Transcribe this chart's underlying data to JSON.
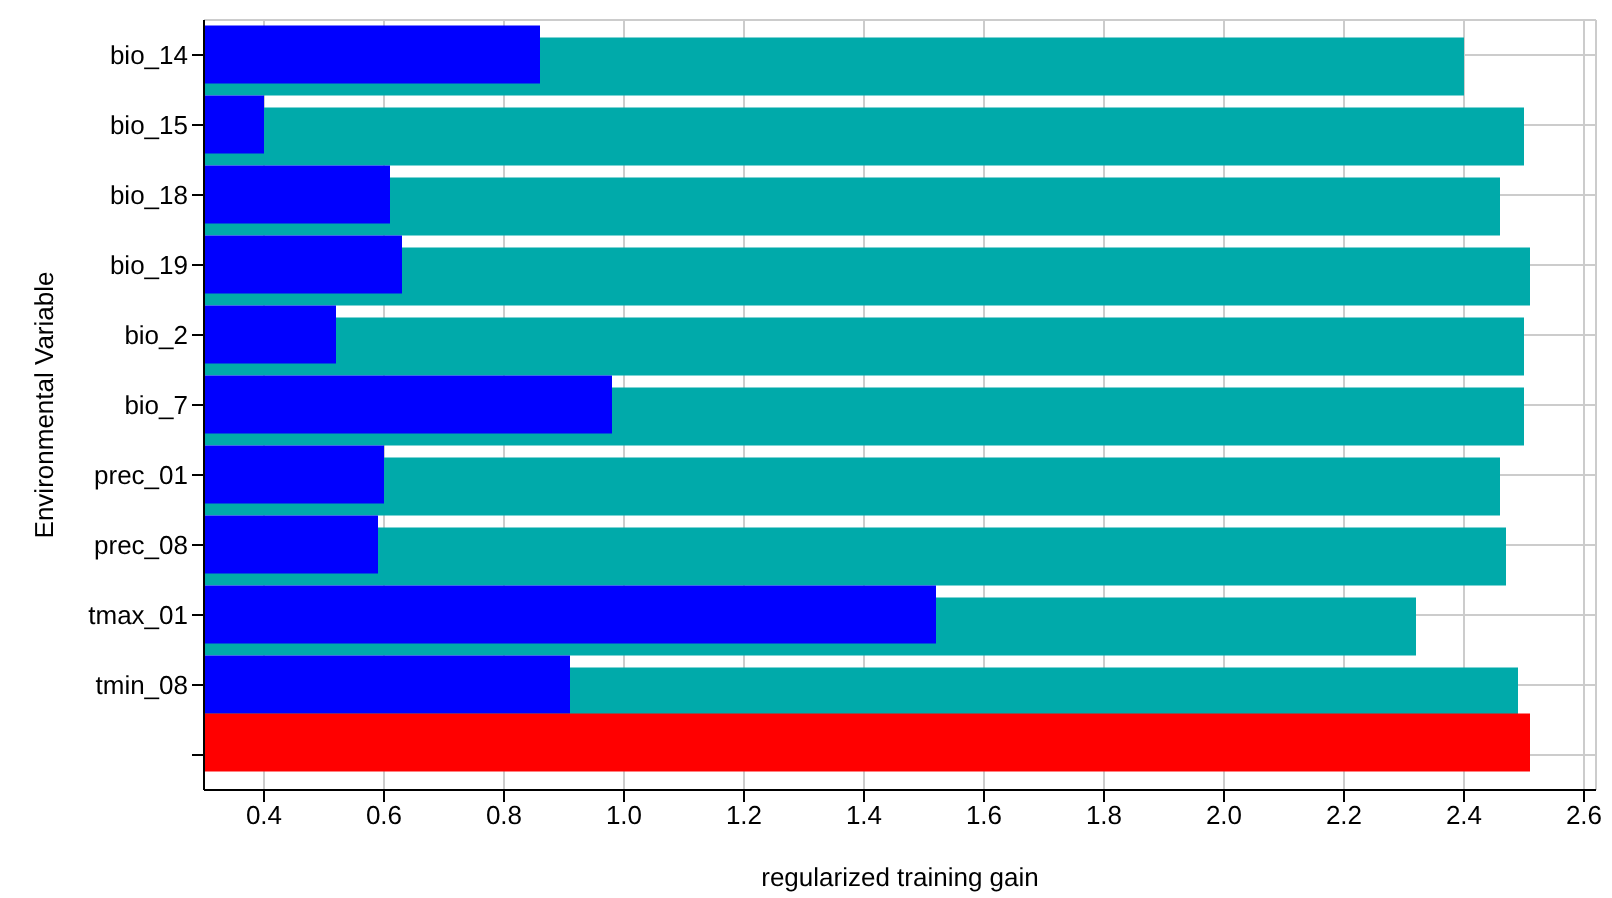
{
  "chart_data": {
    "type": "bar",
    "orientation": "horizontal",
    "ylabel": "Environmental Variable",
    "xlabel": "regularized training gain",
    "categories": [
      "bio_14",
      "bio_15",
      "bio_18",
      "bio_19",
      "bio_2",
      "bio_7",
      "prec_01",
      "prec_08",
      "tmax_01",
      "tmin_08",
      null
    ],
    "series": [
      {
        "color": "#00aaaa",
        "values": [
          2.4,
          2.5,
          2.46,
          2.51,
          2.5,
          2.5,
          2.46,
          2.47,
          2.32,
          2.49,
          null
        ]
      },
      {
        "color": "#0000ff",
        "values": [
          0.86,
          0.4,
          0.61,
          0.63,
          0.52,
          0.98,
          0.6,
          0.59,
          1.52,
          0.91,
          null
        ]
      },
      {
        "color": "#ff0000",
        "values": [
          null,
          null,
          null,
          null,
          null,
          null,
          null,
          null,
          null,
          null,
          2.51
        ]
      }
    ],
    "xlim": [
      0.3,
      2.62
    ],
    "xticks": [
      0.4,
      0.6,
      0.8,
      {
        "value": 1,
        "label": "1.0"
      },
      1.2,
      1.4,
      1.6,
      1.8,
      {
        "value": 2,
        "label": "2.0"
      },
      2.2,
      2.4,
      2.6
    ],
    "grid": true,
    "legend": false
  }
}
